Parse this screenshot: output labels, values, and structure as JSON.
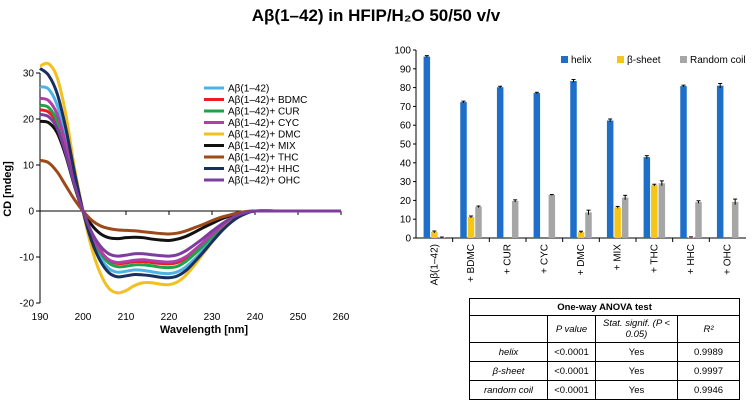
{
  "title": "Aβ(1–42) in HFIP/H₂O 50/50 v/v",
  "chart_data": [
    {
      "type": "line",
      "xlabel": "Wavelength [nm]",
      "ylabel": "CD [mdeg]",
      "xlim": [
        190,
        260
      ],
      "ylim": [
        -20,
        30
      ],
      "xticks": [
        190,
        200,
        210,
        220,
        230,
        240,
        250,
        260
      ],
      "yticks": [
        -20,
        -10,
        0,
        10,
        20,
        30
      ],
      "grid": false,
      "legend_position": "top-right",
      "x": [
        190,
        192,
        194,
        196,
        198,
        200,
        202,
        204,
        206,
        208,
        210,
        212,
        214,
        216,
        218,
        220,
        222,
        224,
        226,
        228,
        230,
        232,
        234,
        236,
        238,
        240,
        245,
        250,
        255,
        260
      ],
      "series": [
        {
          "name": "Aβ(1–42)",
          "color": "#4db3e6",
          "values": [
            27,
            26.5,
            23,
            16,
            7.5,
            0,
            -6,
            -10,
            -12.5,
            -13.3,
            -13.1,
            -12.8,
            -12.9,
            -13.2,
            -13.5,
            -13.6,
            -13.2,
            -12.1,
            -10.4,
            -8.4,
            -6.3,
            -4.3,
            -2.6,
            -1.3,
            -0.5,
            0,
            0,
            0,
            0,
            0
          ]
        },
        {
          "name": "Aβ(1–42)+ BDMC",
          "color": "#ee1c24",
          "values": [
            22,
            21.5,
            19,
            13,
            6,
            0,
            -5,
            -8.5,
            -10.7,
            -11.4,
            -11.3,
            -11,
            -11,
            -11.2,
            -11.4,
            -11.5,
            -11.2,
            -10.2,
            -8.7,
            -7,
            -5.3,
            -3.6,
            -2.2,
            -1.1,
            -0.4,
            0,
            0,
            0,
            0,
            0
          ]
        },
        {
          "name": "Aβ(1–42)+ CUR",
          "color": "#1fa34a",
          "values": [
            23,
            22.5,
            19.5,
            13.5,
            6.3,
            0,
            -5.3,
            -9,
            -11.3,
            -12.1,
            -12,
            -11.7,
            -11.7,
            -11.9,
            -12.2,
            -12.3,
            -12,
            -10.9,
            -9.3,
            -7.5,
            -5.6,
            -3.8,
            -2.3,
            -1.2,
            -0.4,
            0,
            0,
            0,
            0,
            0
          ]
        },
        {
          "name": "Aβ(1–42)+ CYC",
          "color": "#b03fa8",
          "values": [
            24.5,
            24,
            21,
            14.5,
            6.8,
            0,
            -5,
            -8.6,
            -10.6,
            -11.2,
            -11,
            -10.7,
            -10.6,
            -10.8,
            -11,
            -11.1,
            -10.8,
            -9.9,
            -8.4,
            -6.8,
            -5.1,
            -3.5,
            -2.1,
            -1.1,
            -0.4,
            0,
            0,
            0,
            0,
            0
          ]
        },
        {
          "name": "Aβ(1–42)+ DMC",
          "color": "#f2c11f",
          "values": [
            31.5,
            32,
            29,
            21,
            9.5,
            0,
            -8,
            -13.5,
            -16.8,
            -17.8,
            -17.3,
            -16.2,
            -15.6,
            -15.6,
            -15.9,
            -16,
            -15.4,
            -13.9,
            -11.7,
            -9.2,
            -6.8,
            -4.6,
            -2.7,
            -1.3,
            -0.4,
            0,
            0,
            0,
            0,
            0
          ]
        },
        {
          "name": "Aβ(1–42)+ MIX",
          "color": "#111111",
          "values": [
            19.5,
            19.2,
            17,
            12,
            5.5,
            0,
            -3,
            -4.9,
            -5.8,
            -6,
            -5.8,
            -5.7,
            -5.8,
            -6.1,
            -6.3,
            -6.4,
            -6.1,
            -5.5,
            -4.6,
            -3.6,
            -2.7,
            -1.8,
            -1.1,
            -0.5,
            -0.2,
            0,
            0,
            0,
            0,
            0
          ]
        },
        {
          "name": "Aβ(1–42)+ THC",
          "color": "#9c4a1a",
          "values": [
            11,
            10.5,
            8.5,
            5.5,
            2.5,
            0,
            -2,
            -3.2,
            -3.8,
            -4.1,
            -4.2,
            -4.3,
            -4.5,
            -4.7,
            -4.9,
            -5,
            -4.8,
            -4.3,
            -3.6,
            -2.9,
            -2.1,
            -1.4,
            -0.9,
            -0.4,
            -0.1,
            0,
            0,
            0,
            0,
            0
          ]
        },
        {
          "name": "Aβ(1–42)+ HHC",
          "color": "#1a2f5e",
          "values": [
            31,
            29.5,
            25.5,
            18,
            8.5,
            0,
            -6.5,
            -10.8,
            -13.4,
            -14.3,
            -14.1,
            -13.8,
            -13.9,
            -14.1,
            -14.4,
            -14.5,
            -14.1,
            -12.9,
            -11,
            -8.9,
            -6.7,
            -4.6,
            -2.8,
            -1.4,
            -0.5,
            0,
            0,
            0,
            0,
            0
          ]
        },
        {
          "name": "Aβ(1–42)+ OHC",
          "color": "#7d3d9e",
          "values": [
            21,
            20.5,
            18,
            12.5,
            5.8,
            0,
            -4.6,
            -7.6,
            -9.3,
            -9.8,
            -9.6,
            -9.3,
            -9.3,
            -9.5,
            -9.7,
            -9.8,
            -9.5,
            -8.6,
            -7.3,
            -5.9,
            -4.4,
            -3,
            -1.8,
            -0.9,
            -0.3,
            0,
            0,
            0,
            0,
            0
          ]
        }
      ]
    },
    {
      "type": "bar",
      "ylim": [
        0,
        100
      ],
      "yticks": [
        0,
        10,
        20,
        30,
        40,
        50,
        60,
        70,
        80,
        90,
        100
      ],
      "grid": false,
      "legend_position": "top",
      "categories": [
        "Aβ(1–42)",
        "+ BDMC",
        "+ CUR",
        "+ CYC",
        "+ DMC",
        "+ MIX",
        "+ THC",
        "+ HHC",
        "+ OHC"
      ],
      "series": [
        {
          "name": "helix",
          "color": "#1f6fc9",
          "values": [
            96.5,
            72.3,
            80.2,
            77.1,
            83.5,
            62.5,
            43,
            80.8,
            81
          ],
          "errors": [
            0.5,
            0.5,
            0.5,
            0.4,
            0.8,
            0.8,
            0.8,
            0.5,
            1.2
          ]
        },
        {
          "name": "β-sheet",
          "color": "#f5c518",
          "values": [
            3.2,
            11.2,
            0,
            0,
            3.1,
            16.3,
            28.1,
            0.4,
            0
          ],
          "errors": [
            0.5,
            0.5,
            0,
            0,
            0.5,
            0.5,
            0.5,
            0.2,
            0
          ]
        },
        {
          "name": "Random coil",
          "color": "#a6a6a6",
          "values": [
            0.3,
            16.6,
            19.7,
            22.9,
            13.6,
            21.5,
            29.1,
            19.1,
            19.2
          ],
          "errors": [
            0.2,
            0.4,
            0.6,
            0.2,
            1.2,
            1.2,
            1.3,
            0.7,
            1.5
          ]
        }
      ]
    },
    {
      "type": "table",
      "title": "One-way ANOVA test",
      "columns": [
        "",
        "P value",
        "Stat. signif. (P < 0.05)",
        "R²"
      ],
      "rows": [
        [
          "helix",
          "<0.0001",
          "Yes",
          "0.9989"
        ],
        [
          "β-sheet",
          "<0.0001",
          "Yes",
          "0.9997"
        ],
        [
          "random coil",
          "<0.0001",
          "Yes",
          "0.9946"
        ]
      ]
    }
  ]
}
